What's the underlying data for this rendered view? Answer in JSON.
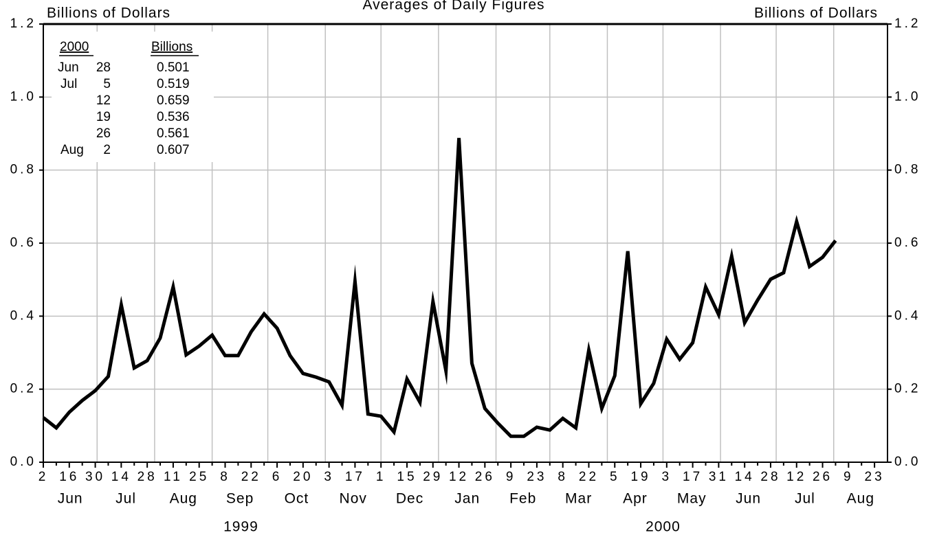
{
  "chart_data": {
    "type": "line",
    "title": "Averages of Daily Figures",
    "ylabel": "Billions of Dollars",
    "y2label": "Billions of Dollars",
    "color": "#000000",
    "grid": true,
    "x": [
      "1999-06-02",
      "1999-06-09",
      "1999-06-16",
      "1999-06-23",
      "1999-06-30",
      "1999-07-07",
      "1999-07-14",
      "1999-07-21",
      "1999-07-28",
      "1999-08-04",
      "1999-08-11",
      "1999-08-18",
      "1999-08-25",
      "1999-09-01",
      "1999-09-08",
      "1999-09-15",
      "1999-09-22",
      "1999-09-29",
      "1999-10-06",
      "1999-10-13",
      "1999-10-20",
      "1999-10-27",
      "1999-11-03",
      "1999-11-10",
      "1999-11-17",
      "1999-11-24",
      "1999-12-01",
      "1999-12-08",
      "1999-12-15",
      "1999-12-22",
      "1999-12-29",
      "2000-01-05",
      "2000-01-12",
      "2000-01-19",
      "2000-01-26",
      "2000-02-02",
      "2000-02-09",
      "2000-02-16",
      "2000-02-23",
      "2000-03-01",
      "2000-03-08",
      "2000-03-15",
      "2000-03-22",
      "2000-03-29",
      "2000-04-05",
      "2000-04-12",
      "2000-04-19",
      "2000-04-26",
      "2000-05-03",
      "2000-05-10",
      "2000-05-17",
      "2000-05-24",
      "2000-05-31",
      "2000-06-07",
      "2000-06-14",
      "2000-06-21",
      "2000-06-28",
      "2000-07-05",
      "2000-07-12",
      "2000-07-19",
      "2000-07-26",
      "2000-08-02"
    ],
    "values": [
      0.122,
      0.094,
      0.137,
      0.169,
      0.196,
      0.235,
      0.431,
      0.258,
      0.278,
      0.34,
      0.48,
      0.294,
      0.318,
      0.348,
      0.292,
      0.292,
      0.357,
      0.406,
      0.367,
      0.292,
      0.243,
      0.233,
      0.22,
      0.156,
      0.495,
      0.132,
      0.126,
      0.083,
      0.228,
      0.164,
      0.44,
      0.25,
      0.888,
      0.271,
      0.147,
      0.107,
      0.071,
      0.071,
      0.096,
      0.088,
      0.12,
      0.094,
      0.307,
      0.147,
      0.237,
      0.578,
      0.16,
      0.216,
      0.337,
      0.282,
      0.327,
      0.48,
      0.404,
      0.564,
      0.382,
      0.444,
      0.501,
      0.519,
      0.659,
      0.536,
      0.561,
      0.607
    ],
    "xlim": [
      "1999-06-02",
      "2000-08-30"
    ],
    "xticks": [
      {
        "value": "1999-06-02",
        "label": "2"
      },
      {
        "value": "1999-06-16",
        "label": "16"
      },
      {
        "value": "1999-06-30",
        "label": "30"
      },
      {
        "value": "1999-07-14",
        "label": "14"
      },
      {
        "value": "1999-07-28",
        "label": "28"
      },
      {
        "value": "1999-08-11",
        "label": "11"
      },
      {
        "value": "1999-08-25",
        "label": "25"
      },
      {
        "value": "1999-09-08",
        "label": "8"
      },
      {
        "value": "1999-09-22",
        "label": "22"
      },
      {
        "value": "1999-10-06",
        "label": "6"
      },
      {
        "value": "1999-10-20",
        "label": "20"
      },
      {
        "value": "1999-11-03",
        "label": "3"
      },
      {
        "value": "1999-11-17",
        "label": "17"
      },
      {
        "value": "1999-12-01",
        "label": "1"
      },
      {
        "value": "1999-12-15",
        "label": "15"
      },
      {
        "value": "1999-12-29",
        "label": "29"
      },
      {
        "value": "2000-01-12",
        "label": "12"
      },
      {
        "value": "2000-01-26",
        "label": "26"
      },
      {
        "value": "2000-02-09",
        "label": "9"
      },
      {
        "value": "2000-02-23",
        "label": "23"
      },
      {
        "value": "2000-03-08",
        "label": "8"
      },
      {
        "value": "2000-03-22",
        "label": "22"
      },
      {
        "value": "2000-04-05",
        "label": "5"
      },
      {
        "value": "2000-04-19",
        "label": "19"
      },
      {
        "value": "2000-05-03",
        "label": "3"
      },
      {
        "value": "2000-05-17",
        "label": "17"
      },
      {
        "value": "2000-05-31",
        "label": "31"
      },
      {
        "value": "2000-06-14",
        "label": "14"
      },
      {
        "value": "2000-06-28",
        "label": "28"
      },
      {
        "value": "2000-07-12",
        "label": "12"
      },
      {
        "value": "2000-07-26",
        "label": "26"
      },
      {
        "value": "2000-08-09",
        "label": "9"
      },
      {
        "value": "2000-08-23",
        "label": "23"
      }
    ],
    "months": [
      "Jun",
      "Jul",
      "Aug",
      "Sep",
      "Oct",
      "Nov",
      "Dec",
      "Jan",
      "Feb",
      "Mar",
      "Apr",
      "May",
      "Jun",
      "Jul",
      "Aug"
    ],
    "years": [
      "1999",
      "2000"
    ],
    "ylim": [
      0,
      1.2
    ],
    "yticks": [
      {
        "value": 0,
        "label": "0.0"
      },
      0.2,
      0.4,
      0.6,
      0.8,
      {
        "value": 1,
        "label": "1.0"
      },
      {
        "value": 1.2,
        "label": "1.2"
      }
    ],
    "y2lim": [
      0,
      1.2
    ],
    "y2ticks": [
      {
        "value": 0,
        "label": "0.0"
      },
      0.2,
      0.4,
      0.6,
      0.8,
      {
        "value": 1,
        "label": "1.0"
      },
      {
        "value": 1.2,
        "label": "1.2"
      }
    ],
    "table": {
      "headers": [
        "2000",
        "Billions"
      ],
      "rows": [
        [
          "Jun",
          "28",
          "0.501"
        ],
        [
          "Jul",
          "5",
          "0.519"
        ],
        [
          null,
          "12",
          "0.659"
        ],
        [
          null,
          "19",
          "0.536"
        ],
        [
          null,
          "26",
          "0.561"
        ],
        [
          "Aug",
          "2",
          "0.607"
        ]
      ]
    }
  }
}
